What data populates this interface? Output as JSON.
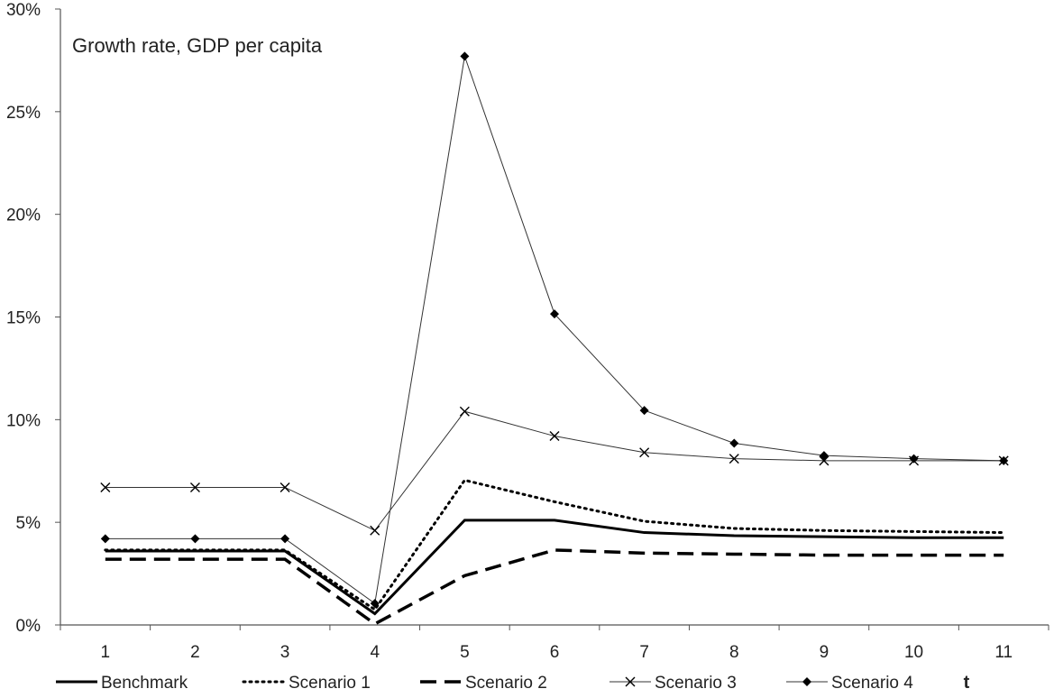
{
  "chart_data": {
    "type": "line",
    "title": "Growth rate, GDP per capita",
    "xlabel": "t",
    "ylabel": "",
    "categories": [
      "1",
      "2",
      "3",
      "4",
      "5",
      "6",
      "7",
      "8",
      "9",
      "10",
      "11"
    ],
    "y_ticks": [
      "0%",
      "5%",
      "10%",
      "15%",
      "20%",
      "25%",
      "30%"
    ],
    "ylim": [
      0,
      30
    ],
    "y_unit": "%",
    "grid": false,
    "legend_position": "bottom",
    "series": [
      {
        "name": "Benchmark",
        "style": "solid-thick",
        "marker": "none",
        "values": [
          3.6,
          3.6,
          3.6,
          0.55,
          5.1,
          5.1,
          4.5,
          4.35,
          4.3,
          4.25,
          4.25
        ]
      },
      {
        "name": "Scenario 1",
        "style": "dotted",
        "marker": "none",
        "values": [
          3.65,
          3.65,
          3.65,
          0.75,
          7.05,
          6.0,
          5.05,
          4.7,
          4.6,
          4.55,
          4.5
        ]
      },
      {
        "name": "Scenario 2",
        "style": "dashed",
        "marker": "none",
        "values": [
          3.2,
          3.2,
          3.2,
          0.05,
          2.4,
          3.65,
          3.5,
          3.45,
          3.4,
          3.4,
          3.4
        ]
      },
      {
        "name": "Scenario 3",
        "style": "thin",
        "marker": "x",
        "values": [
          6.7,
          6.7,
          6.7,
          4.6,
          10.4,
          9.2,
          8.4,
          8.1,
          8.0,
          8.0,
          8.0
        ]
      },
      {
        "name": "Scenario 4",
        "style": "thin",
        "marker": "diamond",
        "values": [
          4.2,
          4.2,
          4.2,
          1.05,
          27.7,
          15.15,
          10.45,
          8.85,
          8.25,
          8.1,
          8.0
        ]
      }
    ]
  }
}
